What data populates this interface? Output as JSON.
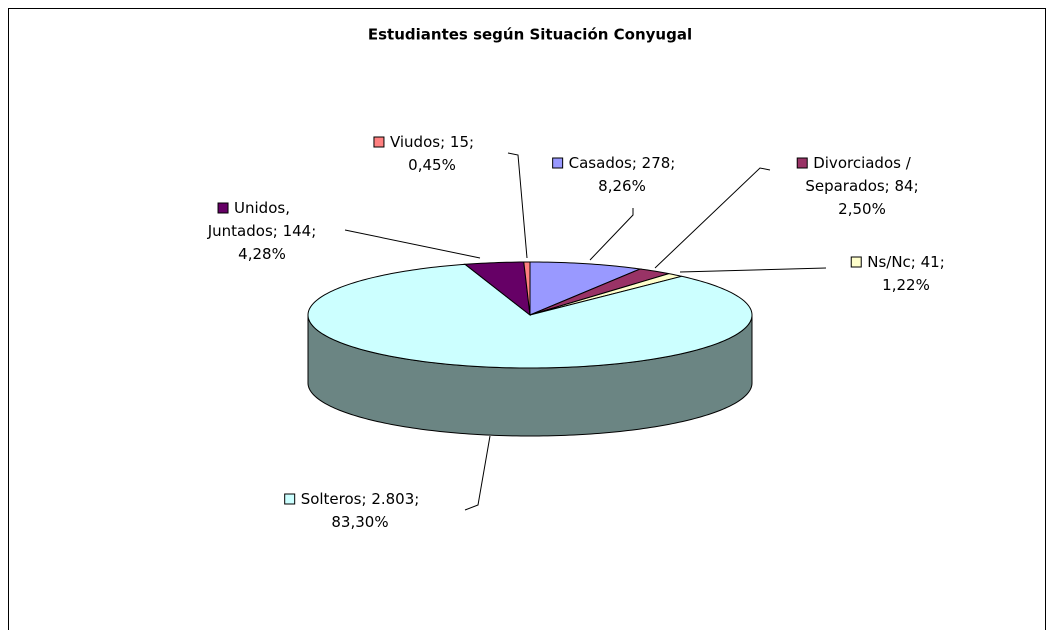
{
  "chart_data": {
    "type": "pie",
    "title": "Estudiantes según Situación Conyugal",
    "categories": [
      "Casados",
      "Divorciados / Separados",
      "Ns/Nc",
      "Solteros",
      "Unidos, Juntados",
      "Viudos"
    ],
    "values": [
      278,
      84,
      41,
      2803,
      144,
      15
    ],
    "percentages": [
      8.26,
      2.5,
      1.22,
      83.3,
      4.28,
      0.45
    ],
    "value_labels": [
      "Casados; 278; 8,26%",
      "Divorciados / Separados; 84; 2,50%",
      "Ns/Nc; 41; 1,22%",
      "Solteros; 2.803; 83,30%",
      "Unidos, Juntados; 144; 4,28%",
      "Viudos; 15; 0,45%"
    ],
    "colors": [
      "#9999FF",
      "#993366",
      "#FFFFCC",
      "#CCFFFF",
      "#660066",
      "#FF8080"
    ],
    "side_colors": [
      "#6666b3",
      "#6b2447",
      "#b3b38f",
      "#6b8583",
      "#470047",
      "#b35a5a"
    ],
    "three_d": true
  }
}
